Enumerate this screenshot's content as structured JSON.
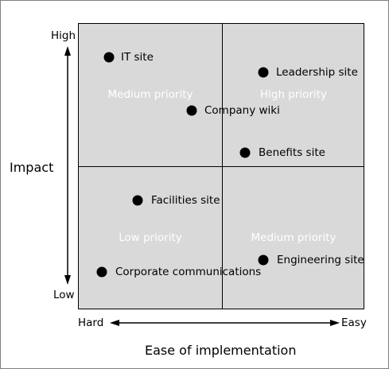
{
  "diagram": {
    "y_axis": {
      "title": "Impact",
      "high": "High",
      "low": "Low"
    },
    "x_axis": {
      "title": "Ease of implementation",
      "low": "Hard",
      "high": "Easy"
    },
    "quadrants": [
      {
        "id": "top-left",
        "label": "Medium priority"
      },
      {
        "id": "top-right",
        "label": "High priority"
      },
      {
        "id": "bottom-left",
        "label": "Low priority"
      },
      {
        "id": "bottom-right",
        "label": "Medium priority"
      }
    ],
    "points": [
      {
        "label": "IT site"
      },
      {
        "label": "Leadership site"
      },
      {
        "label": "Company wiki"
      },
      {
        "label": "Benefits site"
      },
      {
        "label": "Facilities site"
      },
      {
        "label": "Engineering site"
      },
      {
        "label": "Corporate communications"
      }
    ]
  }
}
